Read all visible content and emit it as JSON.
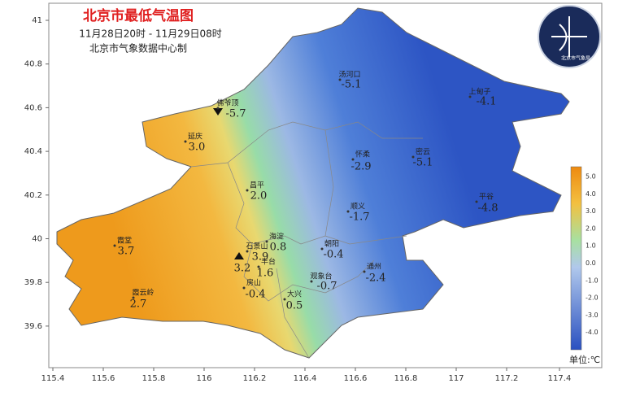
{
  "title": "北京市最低气温图",
  "subtitle": [
    "11月28日20时 - 11月29日08时",
    "北京市气象数据中心制"
  ],
  "logo": {
    "text": "北京市气象局"
  },
  "axes": {
    "x_ticks": [
      "115.4",
      "115.6",
      "115.8",
      "116",
      "116.2",
      "116.4",
      "116.6",
      "116.8",
      "117",
      "117.2",
      "117.4"
    ],
    "y_ticks": [
      "41",
      "40.8",
      "40.6",
      "40.4",
      "40.2",
      "40",
      "39.8",
      "39.6"
    ]
  },
  "stations": [
    {
      "name": "汤河口",
      "value": "-5.1"
    },
    {
      "name": "上甸子",
      "value": "-4.1"
    },
    {
      "name": "佛爷顶",
      "value": "-5.7"
    },
    {
      "name": "延庆",
      "value": "3.0"
    },
    {
      "name": "怀柔",
      "value": "-2.9"
    },
    {
      "name": "密云",
      "value": "-5.1"
    },
    {
      "name": "昌平",
      "value": "2.0"
    },
    {
      "name": "顺义",
      "value": "-1.7"
    },
    {
      "name": "平谷",
      "value": "-4.8"
    },
    {
      "name": "霞堂",
      "value": "3.7"
    },
    {
      "name": "海淀",
      "value": "0.8"
    },
    {
      "name": "石景山",
      "value": "3.9"
    },
    {
      "name": "丰台",
      "value": "1.6"
    },
    {
      "value": "3.2"
    },
    {
      "name": "朝阳",
      "value": "-0.4"
    },
    {
      "name": "房山",
      "value": "-0.4"
    },
    {
      "name": "观象台",
      "value": "-0.7"
    },
    {
      "name": "通州",
      "value": "-2.4"
    },
    {
      "name": "霞云岭",
      "value": "2.7"
    },
    {
      "name": "大兴",
      "value": "0.5"
    }
  ],
  "legend": {
    "ticks": [
      "5.0",
      "4.0",
      "3.0",
      "2.0",
      "1.0",
      "0.0",
      "-1.0",
      "-2.0",
      "-3.0",
      "-4.0"
    ],
    "unit": "单位:℃"
  }
}
